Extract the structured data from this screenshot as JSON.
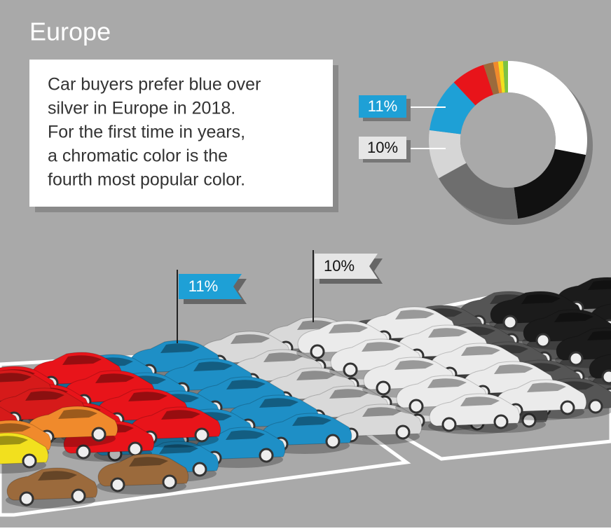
{
  "chart_data": {
    "type": "donut",
    "title": "Europe",
    "annotation": [
      "Car buyers prefer blue over",
      "silver in Europe in 2018.",
      "For the first time in years,",
      "a chromatic color is the",
      "fourth most popular color."
    ],
    "values": [
      28,
      20,
      19,
      10,
      11,
      7,
      2,
      1,
      1,
      1
    ],
    "value_labels": [
      null,
      null,
      null,
      "10%",
      "11%",
      null,
      null,
      null,
      null,
      null
    ],
    "colors": [
      "#ffffff",
      "#111111",
      "#6e6e6e",
      "#d6d6d6",
      "#1ea0d6",
      "#e8141a",
      "#9b6a3c",
      "#f08a2c",
      "#f2e01e",
      "#7cc242"
    ]
  }
}
